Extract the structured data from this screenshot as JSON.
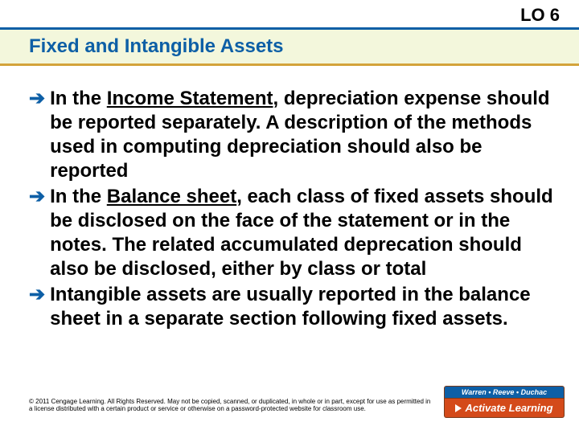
{
  "header": {
    "lo_label": "LO 6",
    "title": "Fixed and Intangible Assets"
  },
  "bullets": [
    {
      "prefix": "In the ",
      "underlined": "Income Statement",
      "rest": ", depreciation expense should be reported separately. A description of the methods used in computing depreciation should also be reported"
    },
    {
      "prefix": "In the ",
      "underlined": "Balance sheet",
      "rest": ", each class of fixed assets should be disclosed on the face of the statement or in the notes. The related accumulated deprecation should also be disclosed, either by class or total"
    },
    {
      "prefix": "",
      "underlined": "",
      "rest": "Intangible assets are usually reported in the balance sheet in a separate section following fixed assets."
    }
  ],
  "copyright": "© 2011 Cengage Learning. All Rights Reserved. May not be copied, scanned, or duplicated, in whole or in part, except for use as permitted in a license distributed with a certain product or service or otherwise on a password-protected website for classroom use.",
  "badge": {
    "authors": "Warren • Reeve • Duchac",
    "cta": "Activate Learning"
  },
  "colors": {
    "primary_blue": "#0d5fa6",
    "accent_gold": "#d3a33b",
    "title_bg": "#f3f7dc",
    "badge_orange": "#d44a1a"
  }
}
